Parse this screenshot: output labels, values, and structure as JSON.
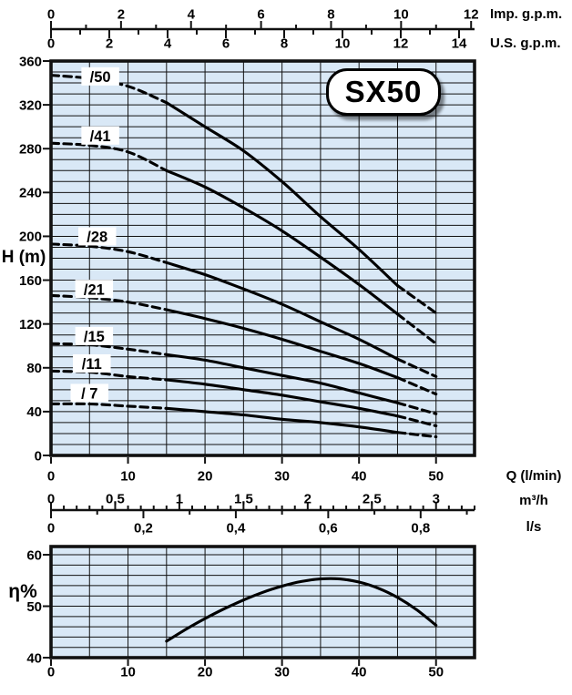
{
  "badge": {
    "text": "SX50"
  },
  "labels": {
    "imp_gpm": "Imp. g.p.m.",
    "us_gpm": "U.S. g.p.m.",
    "q_lmin": "Q (l/min)",
    "m3h": "m³/h",
    "ls": "l/s",
    "head_axis": "H (m)",
    "eta_axis": "η%"
  },
  "colors": {
    "plot_bg": "#d9e8f6",
    "grid": "#111111",
    "curve": "#000000",
    "text": "#000000",
    "label_box_bg": "#ffffff"
  },
  "chart_data": [
    {
      "type": "line",
      "id": "head-curves",
      "title": "SX50",
      "ylabel": "H (m)",
      "xlabel": "Q (l/min)",
      "ylim": [
        0,
        360
      ],
      "xlim": [
        0,
        55
      ],
      "y_label_step": 40,
      "y_grid_step": 10,
      "x_grid_step": 5,
      "x_label_step": 10,
      "grid": true,
      "legend_position": "on-curve",
      "x_scales": [
        {
          "name": "Imp. g.p.m.",
          "lmin_per_unit": 4.546,
          "max": 12,
          "label_step": 2,
          "tick_step": 1,
          "side": "top"
        },
        {
          "name": "U.S. g.p.m.",
          "lmin_per_unit": 3.785,
          "max": 14,
          "label_step": 2,
          "tick_step": 1,
          "side": "top"
        },
        {
          "name": "Q (l/min)",
          "lmin_per_unit": 1,
          "max": 50,
          "label_step": 10,
          "tick_step": 10,
          "side": "bottom"
        },
        {
          "name": "m³/h",
          "lmin_per_unit": 16.667,
          "max": 3,
          "label_step": 0.5,
          "tick_step": 0.1,
          "side": "bottom"
        },
        {
          "name": "l/s",
          "lmin_per_unit": 60,
          "max": 0.8,
          "label_step": 0.2,
          "tick_step": 0.1,
          "side": "bottom"
        }
      ],
      "solid_range": [
        15,
        45
      ],
      "series": [
        {
          "name": "/50",
          "label_at": [
            6.4,
            346
          ],
          "points": [
            [
              0,
              347
            ],
            [
              5,
              344
            ],
            [
              10,
              337
            ],
            [
              15,
              322
            ],
            [
              20,
              300
            ],
            [
              25,
              278
            ],
            [
              30,
              250
            ],
            [
              35,
              218
            ],
            [
              40,
              188
            ],
            [
              45,
              155
            ],
            [
              50,
              130
            ]
          ]
        },
        {
          "name": "/41",
          "label_at": [
            6.4,
            292
          ],
          "points": [
            [
              0,
              285
            ],
            [
              5,
              283
            ],
            [
              10,
              277
            ],
            [
              15,
              260
            ],
            [
              20,
              245
            ],
            [
              25,
              226
            ],
            [
              30,
              205
            ],
            [
              35,
              181
            ],
            [
              40,
              156
            ],
            [
              45,
              129
            ],
            [
              50,
              102
            ]
          ]
        },
        {
          "name": "/28",
          "label_at": [
            6.0,
            200
          ],
          "points": [
            [
              0,
              193
            ],
            [
              5,
              191
            ],
            [
              10,
              186
            ],
            [
              15,
              176
            ],
            [
              20,
              165
            ],
            [
              25,
              152
            ],
            [
              30,
              138
            ],
            [
              35,
              122
            ],
            [
              40,
              106
            ],
            [
              45,
              88
            ],
            [
              50,
              72
            ]
          ]
        },
        {
          "name": "/21",
          "label_at": [
            5.6,
            152
          ],
          "points": [
            [
              0,
              146
            ],
            [
              5,
              144
            ],
            [
              10,
              140
            ],
            [
              15,
              133
            ],
            [
              20,
              125
            ],
            [
              25,
              116
            ],
            [
              30,
              106
            ],
            [
              35,
              95
            ],
            [
              40,
              84
            ],
            [
              45,
              71
            ],
            [
              50,
              56
            ]
          ]
        },
        {
          "name": "/15",
          "label_at": [
            5.6,
            109
          ],
          "points": [
            [
              0,
              102
            ],
            [
              5,
              101
            ],
            [
              10,
              97
            ],
            [
              15,
              92
            ],
            [
              20,
              87
            ],
            [
              25,
              80
            ],
            [
              30,
              73
            ],
            [
              35,
              66
            ],
            [
              40,
              57
            ],
            [
              45,
              48
            ],
            [
              50,
              38
            ]
          ]
        },
        {
          "name": "/11",
          "label_at": [
            5.3,
            84
          ],
          "points": [
            [
              0,
              77
            ],
            [
              5,
              76
            ],
            [
              10,
              72
            ],
            [
              15,
              69
            ],
            [
              20,
              65
            ],
            [
              25,
              60
            ],
            [
              30,
              55
            ],
            [
              35,
              49
            ],
            [
              40,
              43
            ],
            [
              45,
              36
            ],
            [
              50,
              27
            ]
          ]
        },
        {
          "name": "/ 7",
          "label_at": [
            5.0,
            57
          ],
          "points": [
            [
              0,
              47
            ],
            [
              5,
              47
            ],
            [
              10,
              45
            ],
            [
              15,
              43
            ],
            [
              20,
              40
            ],
            [
              25,
              37
            ],
            [
              30,
              33
            ],
            [
              35,
              30
            ],
            [
              40,
              26
            ],
            [
              45,
              21
            ],
            [
              50,
              17
            ]
          ]
        }
      ]
    },
    {
      "type": "line",
      "id": "efficiency",
      "ylabel": "η%",
      "xlabel": "Q (l/min)",
      "ylim": [
        40,
        62
      ],
      "xlim": [
        0,
        55
      ],
      "y_label_step": 10,
      "y_grid_step": 2,
      "x_grid_step": 5,
      "x_label_step": 10,
      "y_labels": [
        40,
        50,
        60
      ],
      "grid": true,
      "series": [
        {
          "name": "efficiency",
          "points": [
            [
              15,
              43.2
            ],
            [
              17.5,
              45.5
            ],
            [
              20,
              47.6
            ],
            [
              22.5,
              49.5
            ],
            [
              25,
              51.2
            ],
            [
              27.5,
              52.7
            ],
            [
              30,
              53.9
            ],
            [
              32.5,
              54.8
            ],
            [
              35,
              55.3
            ],
            [
              37.5,
              55.3
            ],
            [
              40,
              54.7
            ],
            [
              42.5,
              53.5
            ],
            [
              45,
              51.7
            ],
            [
              47.5,
              49.3
            ],
            [
              50,
              46.3
            ]
          ]
        }
      ]
    }
  ]
}
